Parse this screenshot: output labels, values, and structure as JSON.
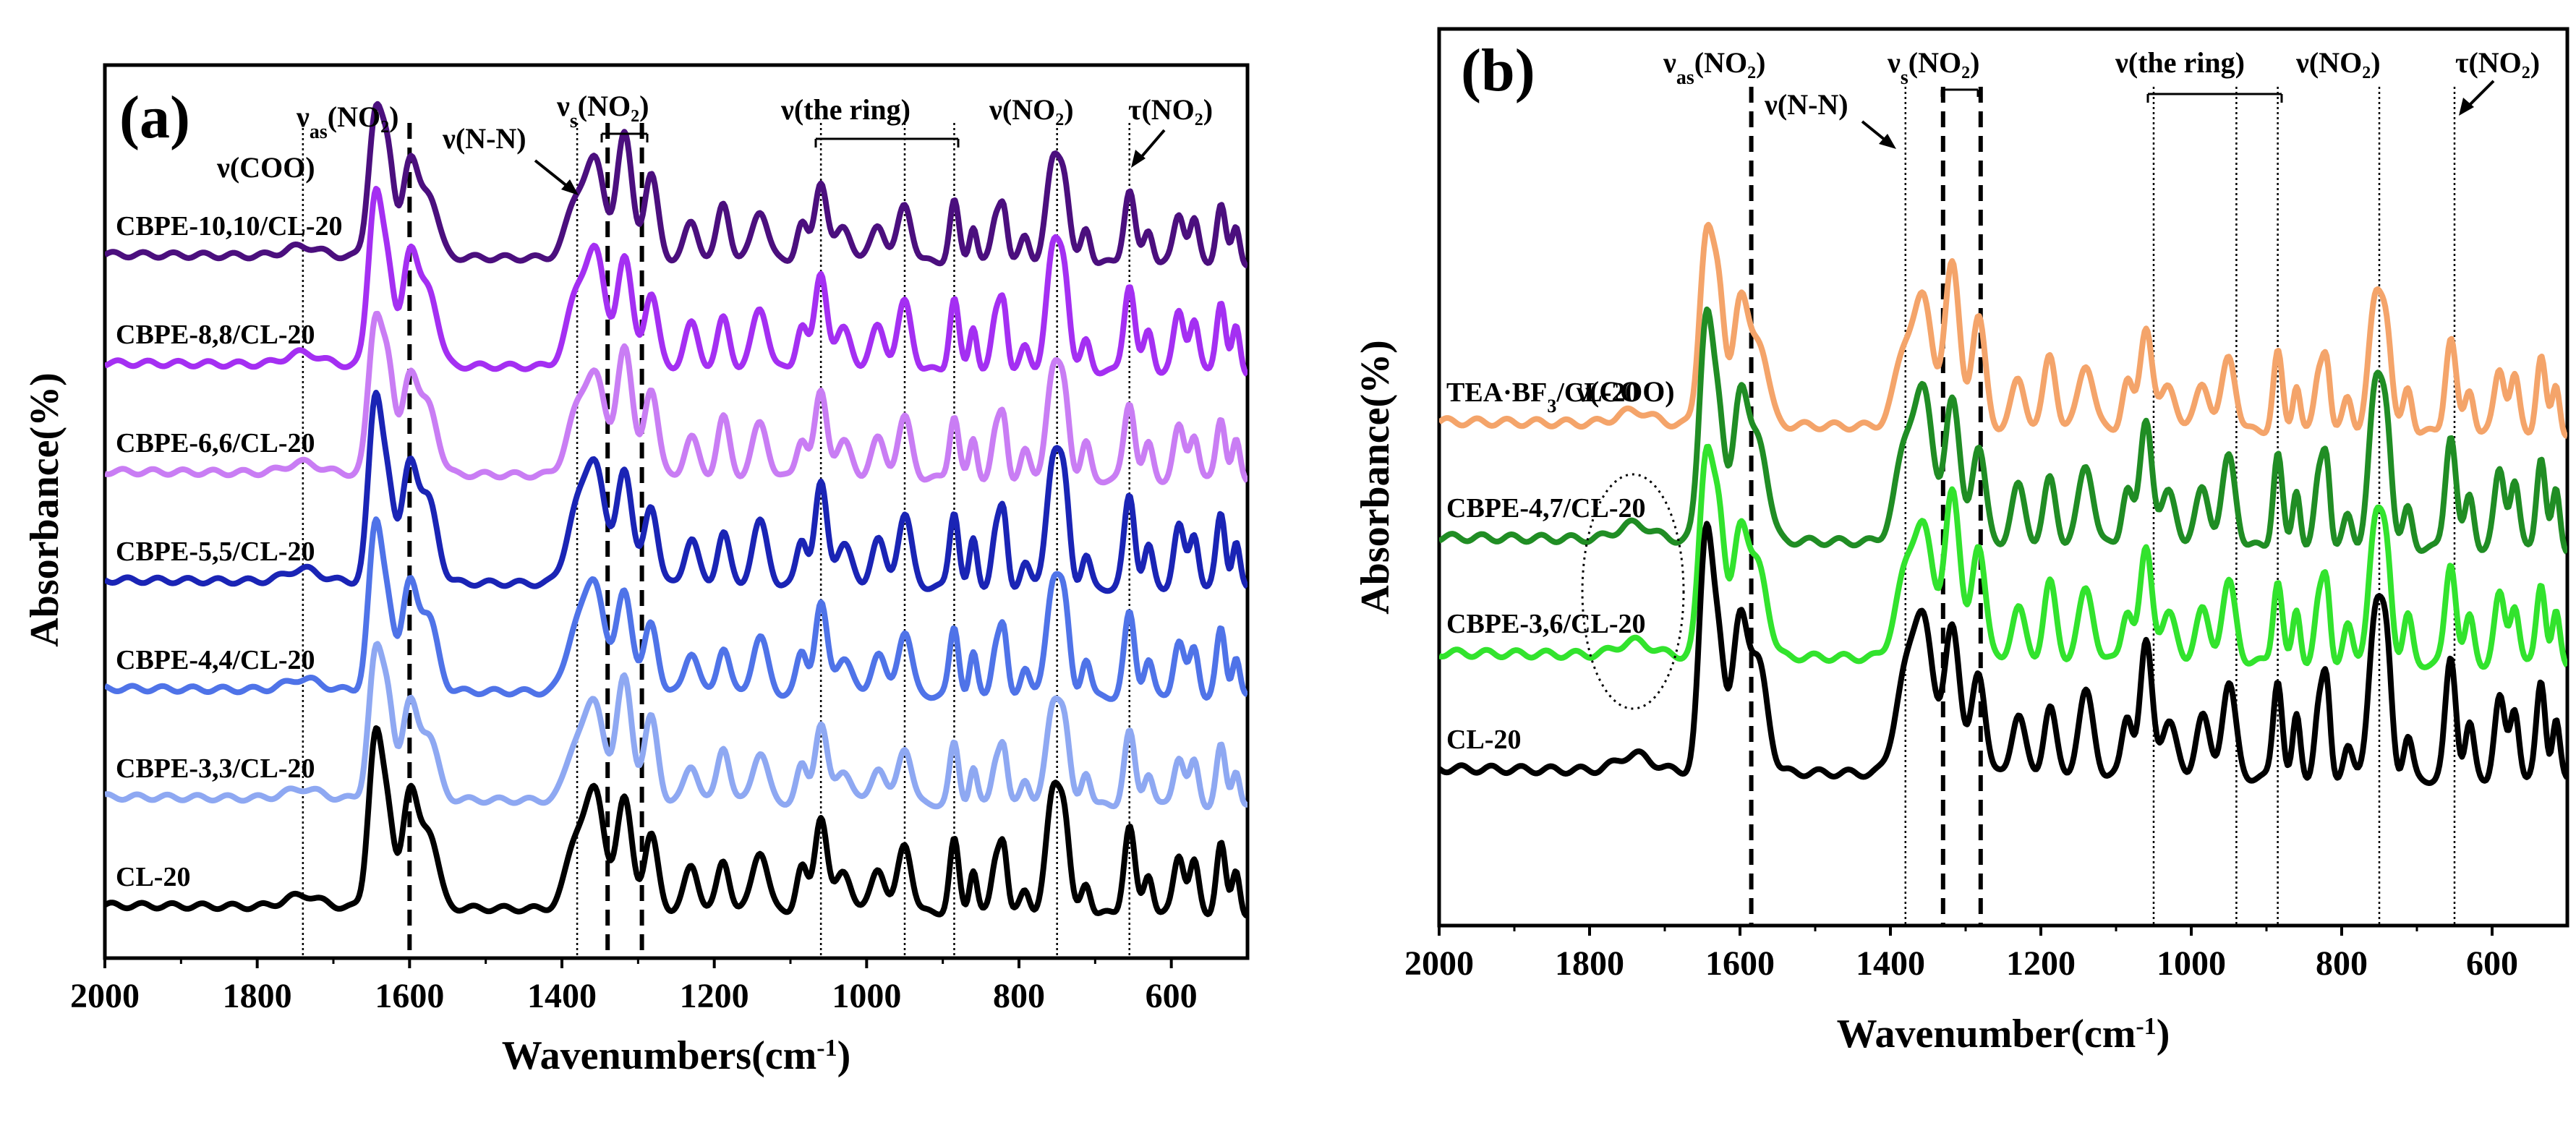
{
  "chart_data": [
    {
      "type": "line",
      "panel_label": "(a)",
      "xlabel": "Wavenumbers(cm",
      "xlabel_sup": "-1",
      "xlabel_end": ")",
      "ylabel": "Absorbance(%)",
      "xlim": [
        2000,
        500
      ],
      "x_ticks": [
        2000,
        1800,
        1600,
        1400,
        1200,
        1000,
        800,
        600
      ],
      "band_annotations": [
        {
          "pre": "ν",
          "sub": "",
          "post": "(COO)"
        },
        {
          "pre": "ν",
          "sub": "as",
          "post": "(NO₂)"
        },
        {
          "pre": "ν",
          "sub": "",
          "post": "(N-N)"
        },
        {
          "pre": "ν",
          "sub": "s",
          "post": "(NO₂)"
        },
        {
          "pre": "ν",
          "sub": "",
          "post": "(the ring)"
        },
        {
          "pre": "ν",
          "sub": "",
          "post": "(NO₂)"
        },
        {
          "pre": "τ",
          "sub": "",
          "post": "(NO₂)"
        }
      ],
      "reference_lines_cm1": [
        1740,
        1600,
        1380,
        1340,
        1295,
        1060,
        950,
        885,
        750,
        655
      ],
      "series": [
        {
          "name": "CBPE-10,10/CL-20",
          "color": "#4b0f7e",
          "offset": 6,
          "label_parts": [
            "CBPE-10,10/CL-20"
          ]
        },
        {
          "name": "CBPE-8,8/CL-20",
          "color": "#a42ff2",
          "offset": 5,
          "label_parts": [
            "CBPE-8,8/CL-20"
          ]
        },
        {
          "name": "CBPE-6,6/CL-20",
          "color": "#c97df4",
          "offset": 4,
          "label_parts": [
            "CBPE-6,6/CL-20"
          ]
        },
        {
          "name": "CBPE-5,5/CL-20",
          "color": "#1a24b5",
          "offset": 3,
          "label_parts": [
            "CBPE-5,5/CL-20"
          ]
        },
        {
          "name": "CBPE-4,4/CL-20",
          "color": "#4f73e8",
          "offset": 2,
          "label_parts": [
            "CBPE-4,4/CL-20"
          ]
        },
        {
          "name": "CBPE-3,3/CL-20",
          "color": "#8ea8f2",
          "offset": 1,
          "label_parts": [
            "CBPE-3,3/CL-20"
          ]
        },
        {
          "name": "CL-20",
          "color": "#000000",
          "offset": 0,
          "label_parts": [
            "CL-20"
          ]
        }
      ]
    },
    {
      "type": "line",
      "panel_label": "(b)",
      "xlabel": "Wavenumber(cm",
      "xlabel_sup": "-1",
      "xlabel_end": ")",
      "ylabel": "Absorbance(%)",
      "xlim": [
        2000,
        500
      ],
      "x_ticks": [
        2000,
        1800,
        1600,
        1400,
        1200,
        1000,
        800,
        600
      ],
      "band_annotations": [
        {
          "pre": "ν",
          "sub": "as",
          "post": "(NO₂)"
        },
        {
          "pre": "ν",
          "sub": "",
          "post": "(N-N)"
        },
        {
          "pre": "ν",
          "sub": "s",
          "post": "(NO₂)"
        },
        {
          "pre": "ν",
          "sub": "",
          "post": "(the ring)"
        },
        {
          "pre": "ν",
          "sub": "",
          "post": "(NO₂)"
        },
        {
          "pre": "τ",
          "sub": "",
          "post": "(NO₂)"
        },
        {
          "pre": "ν",
          "sub": "",
          "post": "(COO)"
        }
      ],
      "reference_lines_cm1": [
        1585,
        1380,
        1330,
        1280,
        1050,
        940,
        885,
        750,
        650
      ],
      "series": [
        {
          "name": "TEA·BF3/CL-20",
          "color": "#f4a46a",
          "offset": 3,
          "label_parts": [
            "TEA·BF",
            "3",
            "/CL-20"
          ]
        },
        {
          "name": "CBPE-4,7/CL-20",
          "color": "#208d24",
          "offset": 2,
          "label_parts": [
            "CBPE-4,7/CL-20"
          ]
        },
        {
          "name": "CBPE-3,6/CL-20",
          "color": "#32e32d",
          "offset": 1,
          "label_parts": [
            "CBPE-3,6/CL-20"
          ]
        },
        {
          "name": "CL-20",
          "color": "#000000",
          "offset": 0,
          "label_parts": [
            "CL-20"
          ]
        }
      ]
    }
  ]
}
